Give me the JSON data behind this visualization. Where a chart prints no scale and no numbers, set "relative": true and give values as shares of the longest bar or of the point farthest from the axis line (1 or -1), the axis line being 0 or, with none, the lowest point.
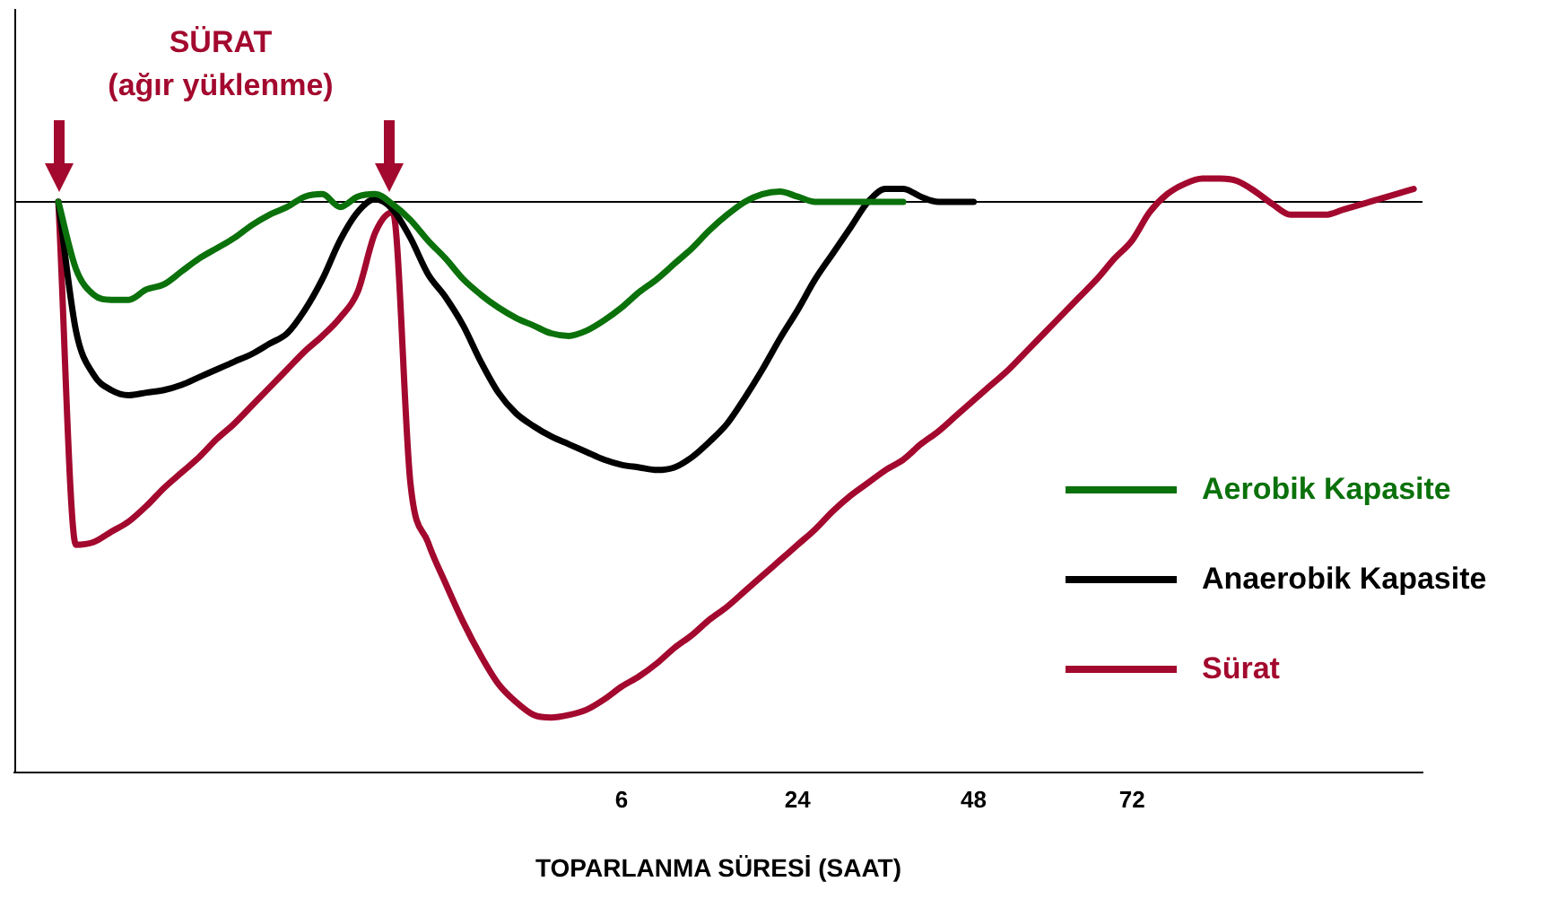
{
  "chart_data": {
    "type": "line",
    "relative": true,
    "xlabel": "TOPARLANMA SÜRESİ (SAAT)",
    "categories": [
      null,
      null,
      null,
      null,
      null,
      null,
      null,
      null,
      null,
      null,
      null,
      null,
      null,
      null,
      null,
      null,
      null,
      null,
      null,
      null,
      null,
      null,
      null,
      null,
      null,
      null,
      null,
      null,
      null,
      null,
      null,
      null,
      null,
      null,
      "6",
      null,
      null,
      null,
      null,
      null,
      null,
      null,
      null,
      null,
      "24",
      null,
      null,
      null,
      null,
      null,
      null,
      null,
      null,
      null,
      "48",
      null,
      null,
      null,
      null,
      null,
      null,
      null,
      null,
      "72",
      null,
      null,
      null,
      null,
      null,
      null,
      null,
      null,
      null,
      null,
      null,
      null,
      null,
      null,
      null,
      null
    ],
    "series": [
      {
        "name": "Aerobik Kapasite",
        "color": "#0b710b",
        "values": [
          null,
          null,
          0,
          -0.13,
          -0.18,
          -0.19,
          -0.19,
          -0.17,
          -0.16,
          -0.135,
          -0.11,
          -0.09,
          -0.07,
          -0.045,
          -0.025,
          -0.01,
          0.01,
          0.015,
          -0.01,
          0.01,
          0.015,
          -0.005,
          -0.035,
          -0.075,
          -0.11,
          -0.15,
          -0.18,
          -0.205,
          -0.225,
          -0.24,
          -0.255,
          -0.26,
          -0.25,
          -0.23,
          -0.205,
          -0.175,
          -0.15,
          -0.12,
          -0.09,
          -0.055,
          -0.025,
          0,
          0.015,
          0.02,
          0.01,
          0,
          0,
          0,
          0,
          0,
          0,
          null,
          null,
          null,
          null,
          null,
          null,
          null,
          null,
          null,
          null,
          null,
          null,
          null,
          null,
          null,
          null,
          null,
          null,
          null,
          null,
          null,
          null,
          null,
          null,
          null,
          null,
          null,
          null,
          null
        ]
      },
      {
        "name": "Anaerobik Kapasite",
        "color": "#000000",
        "values": [
          null,
          null,
          0,
          -0.25,
          -0.335,
          -0.365,
          -0.375,
          -0.37,
          -0.365,
          -0.355,
          -0.34,
          -0.325,
          -0.31,
          -0.295,
          -0.275,
          -0.255,
          -0.21,
          -0.15,
          -0.075,
          -0.02,
          0.005,
          -0.015,
          -0.07,
          -0.14,
          -0.185,
          -0.24,
          -0.31,
          -0.37,
          -0.41,
          -0.435,
          -0.455,
          -0.47,
          -0.485,
          -0.5,
          -0.51,
          -0.515,
          -0.52,
          -0.515,
          -0.495,
          -0.465,
          -0.43,
          -0.38,
          -0.325,
          -0.265,
          -0.21,
          -0.15,
          -0.1,
          -0.05,
          0,
          0.025,
          0.025,
          0.01,
          0,
          0,
          0,
          null,
          null,
          null,
          null,
          null,
          null,
          null,
          null,
          null,
          null,
          null,
          null,
          null,
          null,
          null,
          null,
          null,
          null,
          null,
          null,
          null,
          null,
          null,
          null,
          null
        ]
      },
      {
        "name": "Sürat",
        "color": "#a3092e",
        "values": [
          null,
          null,
          0,
          -0.665,
          -0.66,
          -0.64,
          -0.62,
          -0.59,
          -0.555,
          -0.525,
          -0.495,
          -0.46,
          -0.43,
          -0.395,
          -0.36,
          -0.325,
          -0.29,
          -0.26,
          -0.225,
          -0.175,
          -0.06,
          -0.02,
          -0.545,
          -0.66,
          -0.74,
          -0.815,
          -0.88,
          -0.935,
          -0.97,
          -0.995,
          -1,
          -0.995,
          -0.985,
          -0.965,
          -0.94,
          -0.92,
          -0.895,
          -0.865,
          -0.84,
          -0.81,
          -0.785,
          -0.755,
          -0.725,
          -0.695,
          -0.665,
          -0.635,
          -0.6,
          -0.57,
          -0.545,
          -0.52,
          -0.5,
          -0.47,
          -0.445,
          -0.415,
          -0.385,
          -0.355,
          -0.325,
          -0.29,
          -0.255,
          -0.22,
          -0.185,
          -0.15,
          -0.11,
          -0.075,
          -0.02,
          0.015,
          0.035,
          0.045,
          0.045,
          0.04,
          0.02,
          -0.005,
          -0.025,
          -0.025,
          -0.025,
          -0.015,
          -0.005,
          0.005,
          0.015,
          0.025
        ]
      }
    ],
    "ref_lines": [
      {
        "axis": "y",
        "value": 0,
        "color": "#000000"
      }
    ],
    "annotations": [
      "SÜRAT",
      "(ağır yüklenme)"
    ],
    "legend": "bottom right",
    "marker": "none"
  }
}
